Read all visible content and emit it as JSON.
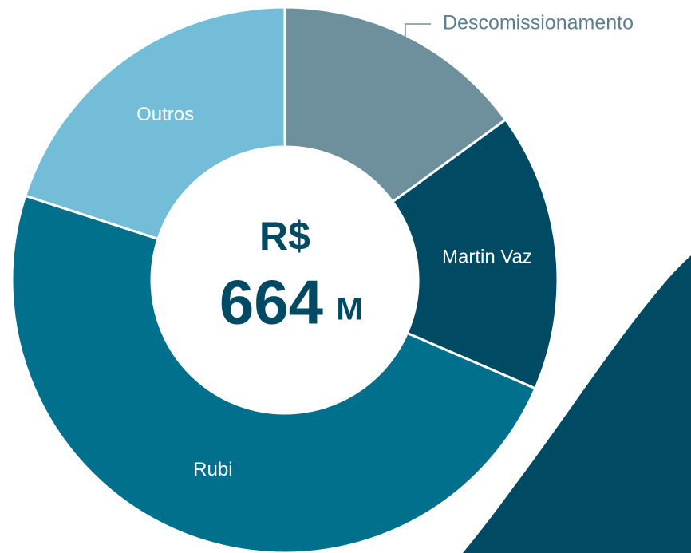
{
  "chart_data": {
    "type": "donut",
    "categories": [
      "Descomissionamento",
      "Martin Vaz",
      "Rubi",
      "Outros"
    ],
    "values": [
      15,
      16.5,
      48.5,
      20
    ],
    "colors": [
      "#6e909c",
      "#004a63",
      "#00708c",
      "#74bdd8"
    ],
    "center_text": {
      "currency": "R$",
      "amount": "664",
      "unit": "M"
    }
  }
}
